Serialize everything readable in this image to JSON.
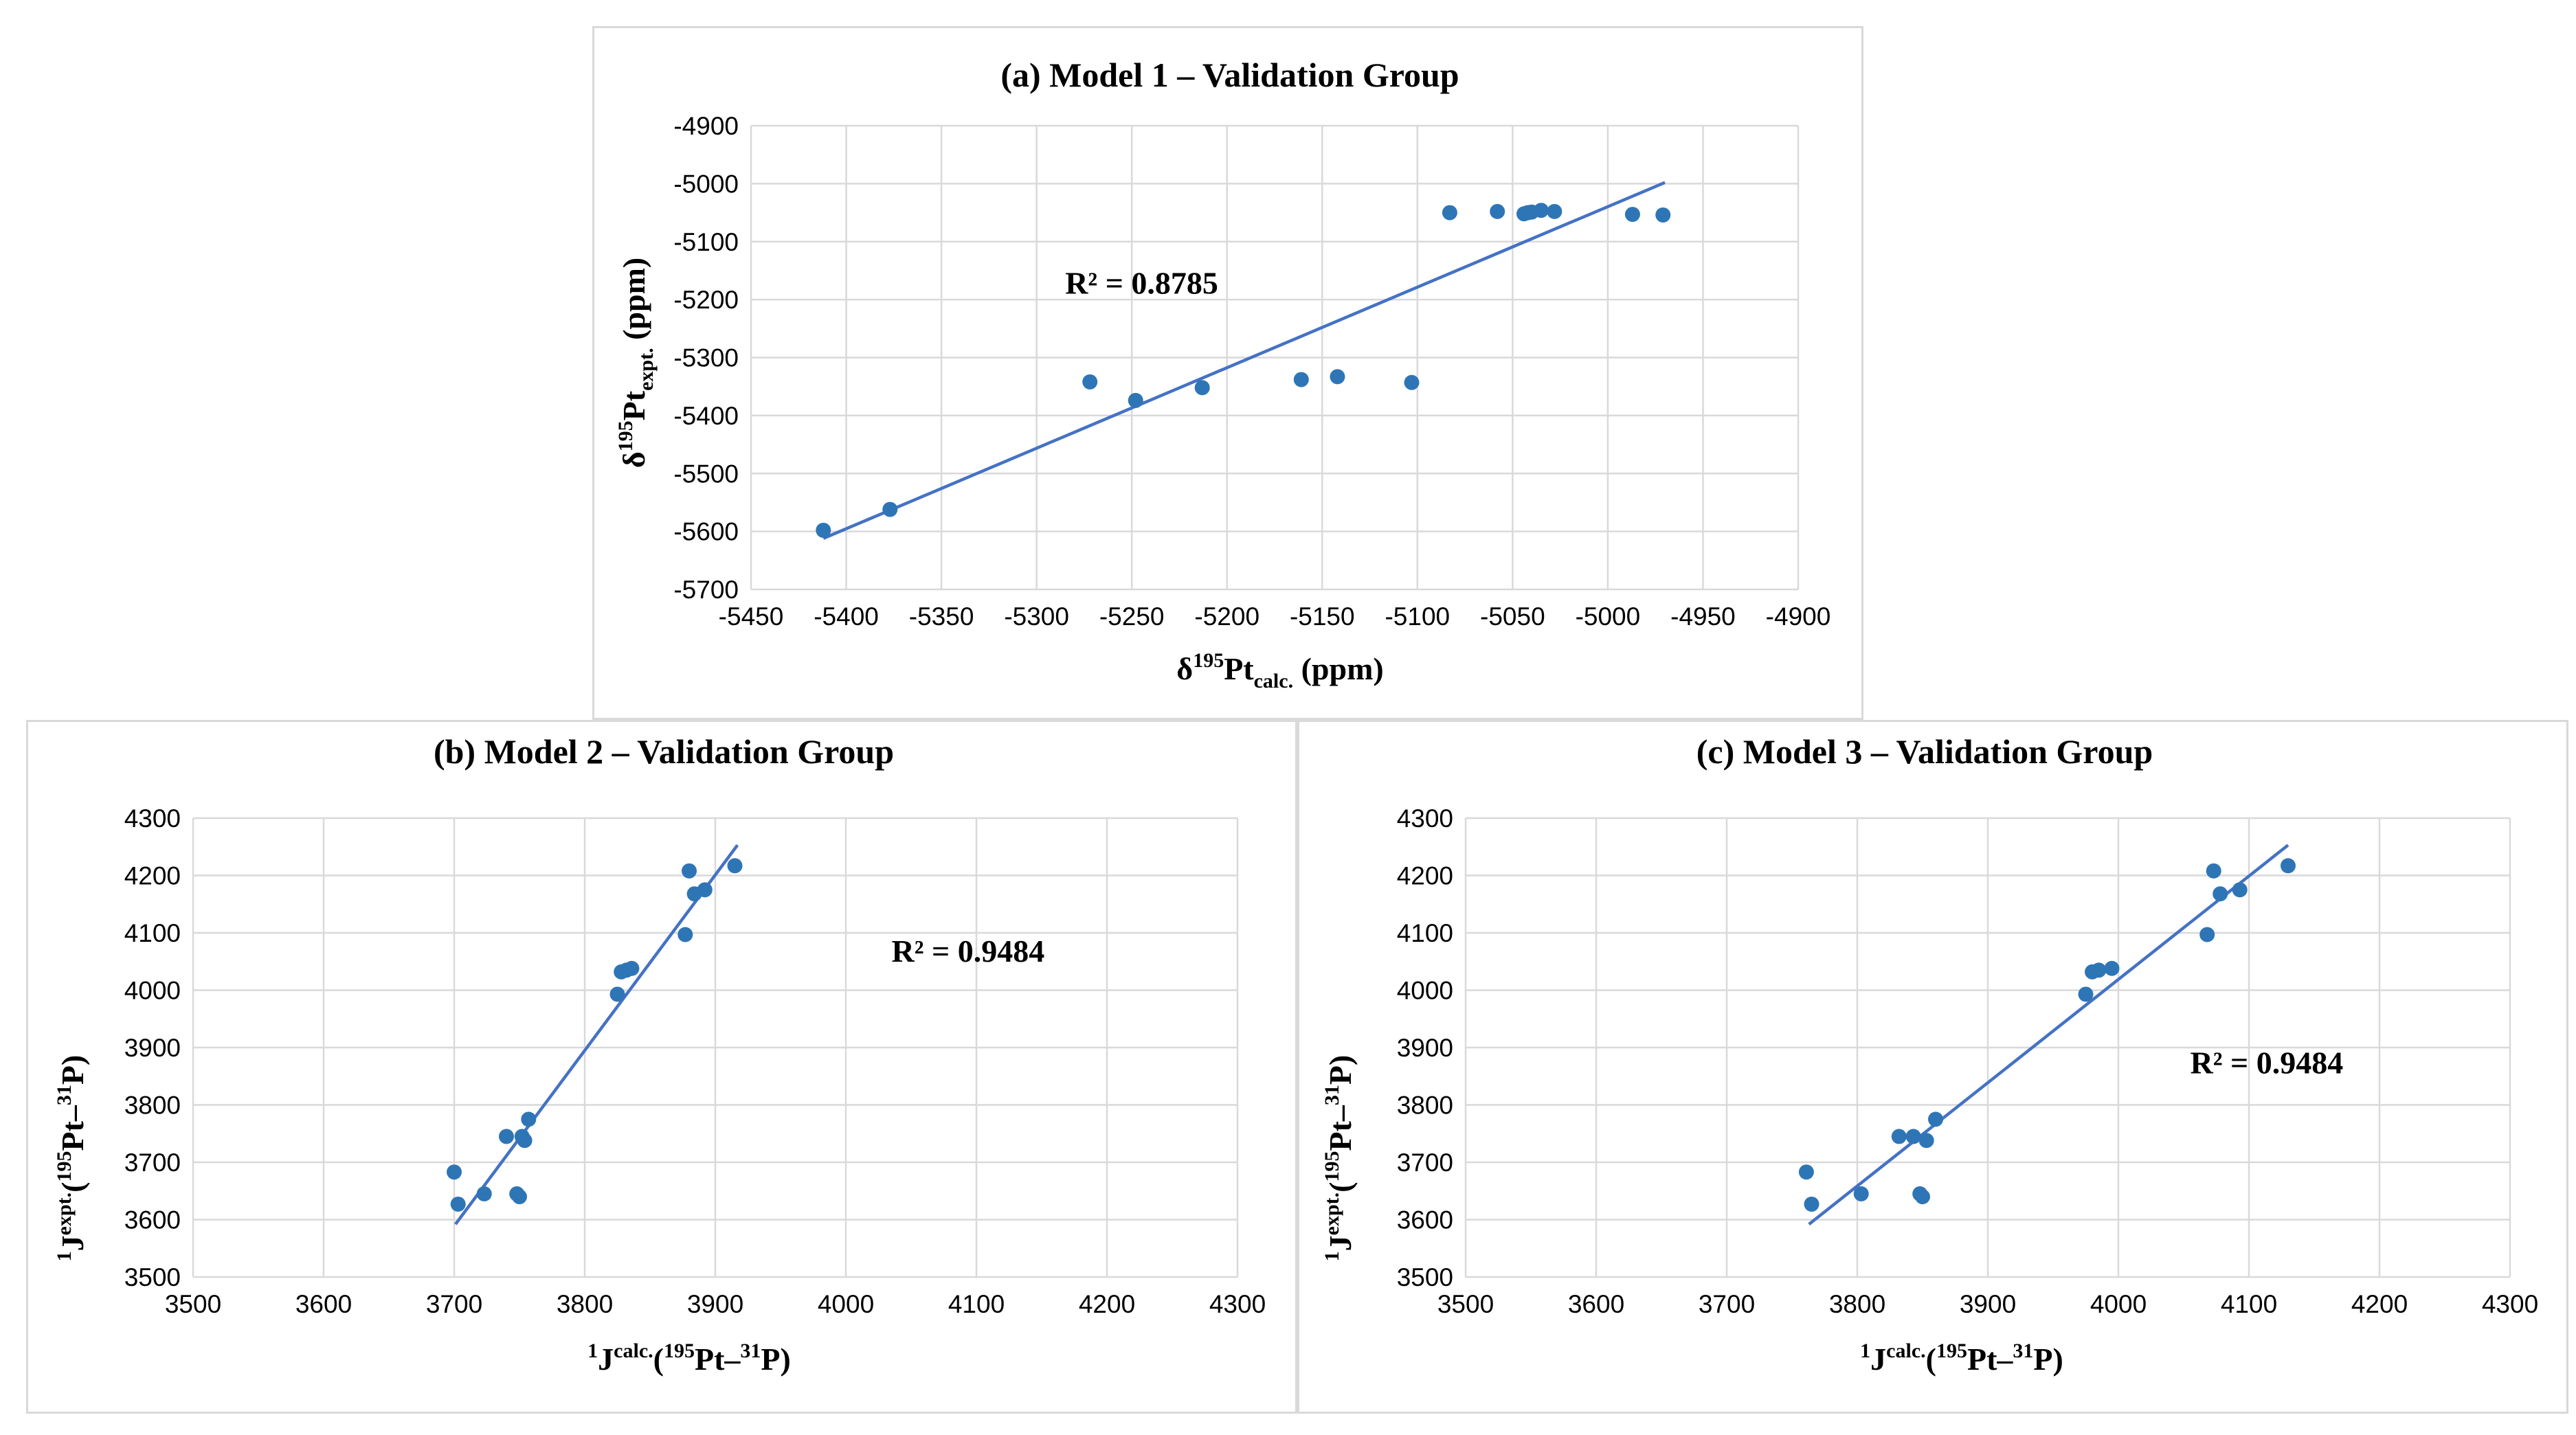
{
  "chart_data": [
    {
      "id": "a",
      "type": "scatter",
      "title": "(a) Model 1 – Validation Group",
      "xlabel": {
        "base": "δ",
        "sup": "195",
        "main": "Pt",
        "sub": "calc.",
        "tail": " (ppm)"
      },
      "ylabel": {
        "base": "δ",
        "sup": "195",
        "main": "Pt",
        "sub": "expt.",
        "tail": " (ppm)"
      },
      "xlim": [
        -5450,
        -4900
      ],
      "ylim": [
        -5700,
        -4900
      ],
      "xticks": [
        -5450,
        -5400,
        -5350,
        -5300,
        -5250,
        -5200,
        -5150,
        -5100,
        -5050,
        -5000,
        -4950,
        -4900
      ],
      "yticks": [
        -4900,
        -5000,
        -5100,
        -5200,
        -5300,
        -5400,
        -5500,
        -5600,
        -5700
      ],
      "x": [
        -5412,
        -5377,
        -5272,
        -5248,
        -5213,
        -5161,
        -5142,
        -5103,
        -5083,
        -5058,
        -5044,
        -5042,
        -5040,
        -5035,
        -5028,
        -4987,
        -4971
      ],
      "y": [
        -5598,
        -5562,
        -5342,
        -5374,
        -5352,
        -5338,
        -5333,
        -5343,
        -5050,
        -5048,
        -5052,
        -5050,
        -5049,
        -5046,
        -5048,
        -5053,
        -5054
      ],
      "trendline": {
        "x": [
          -5412,
          -4970
        ],
        "y": [
          -5612,
          -4998
        ]
      },
      "r2_label": "R² = 0.8785",
      "r2_pos": {
        "x": -5285,
        "y": -5190
      }
    },
    {
      "id": "b",
      "type": "scatter",
      "title": "(b) Model 2 – Validation Group",
      "xlabel": {
        "presup": "1",
        "main": "J",
        "sup": "calc.",
        "paren": "(",
        "sup2": "195",
        "mid": "Pt–",
        "sup3": "31",
        "end": "P)"
      },
      "ylabel": {
        "presup": "1",
        "main": "J",
        "sup": "expt.",
        "paren": "(",
        "sup2": "195",
        "mid": "Pt–",
        "sup3": "31",
        "end": "P)"
      },
      "xlim": [
        3500,
        4300
      ],
      "ylim": [
        3500,
        4300
      ],
      "xticks": [
        3500,
        3600,
        3700,
        3800,
        3900,
        4000,
        4100,
        4200,
        4300
      ],
      "yticks": [
        4300,
        4200,
        4100,
        4000,
        3900,
        3800,
        3700,
        3600,
        3500
      ],
      "x": [
        3700,
        3703,
        3723,
        3740,
        3748,
        3750,
        3752,
        3754,
        3757,
        3825,
        3828,
        3832,
        3836,
        3877,
        3880,
        3884,
        3892,
        3915
      ],
      "y": [
        3683,
        3627,
        3645,
        3745,
        3645,
        3640,
        3745,
        3738,
        3775,
        3993,
        4032,
        4035,
        4038,
        4097,
        4208,
        4168,
        4175,
        4217
      ],
      "trendline": {
        "x": [
          3701,
          3917
        ],
        "y": [
          3592,
          4253
        ]
      },
      "r2_label": "R² = 0.9484",
      "r2_pos": {
        "x": 4035,
        "y": 4050
      }
    },
    {
      "id": "c",
      "type": "scatter",
      "title": "(c) Model 3 – Validation Group",
      "xlabel": {
        "presup": "1",
        "main": "J",
        "sup": "calc.",
        "paren": "(",
        "sup2": "195",
        "mid": "Pt–",
        "sup3": "31",
        "end": "P)"
      },
      "ylabel": {
        "presup": "1",
        "main": "J",
        "sup": "expt.",
        "paren": "(",
        "sup2": "195",
        "mid": "Pt–",
        "sup3": "31",
        "end": "P)"
      },
      "xlim": [
        3500,
        4300
      ],
      "ylim": [
        3500,
        4300
      ],
      "xticks": [
        3500,
        3600,
        3700,
        3800,
        3900,
        4000,
        4100,
        4200,
        4300
      ],
      "yticks": [
        4300,
        4200,
        4100,
        4000,
        3900,
        3800,
        3700,
        3600,
        3500
      ],
      "x": [
        3761,
        3765,
        3803,
        3832,
        3843,
        3848,
        3850,
        3853,
        3860,
        3975,
        3980,
        3985,
        3995,
        4068,
        4073,
        4078,
        4093,
        4130
      ],
      "y": [
        3683,
        3627,
        3645,
        3745,
        3745,
        3645,
        3640,
        3738,
        3775,
        3993,
        4032,
        4035,
        4038,
        4097,
        4208,
        4168,
        4175,
        4217
      ],
      "trendline": {
        "x": [
          3763,
          4130
        ],
        "y": [
          3592,
          4253
        ]
      },
      "r2_label": "R² = 0.9484",
      "r2_pos": {
        "x": 4055,
        "y": 3855
      }
    }
  ]
}
